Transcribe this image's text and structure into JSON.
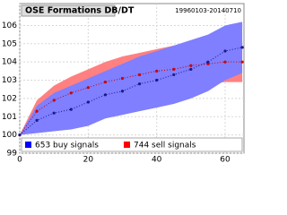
{
  "chart_data": {
    "type": "band-line",
    "title": "OSE Formations DB/DT",
    "subtitle": "19960103-20140710",
    "x": [
      0,
      5,
      10,
      15,
      20,
      25,
      30,
      35,
      40,
      45,
      50,
      55,
      60,
      65
    ],
    "series": [
      {
        "name": "744 sell signals",
        "color": "#cc0000",
        "band_color": "#ff8080",
        "values": [
          100,
          101.3,
          101.9,
          102.3,
          102.6,
          102.9,
          103.1,
          103.3,
          103.5,
          103.6,
          103.8,
          103.9,
          104.0,
          104.0
        ],
        "upper": [
          100,
          101.9,
          102.7,
          103.2,
          103.6,
          104.0,
          104.3,
          104.5,
          104.7,
          104.9,
          105.0,
          105.1,
          105.2,
          105.2
        ],
        "lower": [
          100,
          100.8,
          101.2,
          101.5,
          101.8,
          102.0,
          102.2,
          102.4,
          102.5,
          102.6,
          102.7,
          102.8,
          102.9,
          102.9
        ]
      },
      {
        "name": "653 buy signals",
        "color": "#1a1a8c",
        "band_color": "#7f7fff",
        "values": [
          100,
          100.8,
          101.2,
          101.4,
          101.8,
          102.2,
          102.4,
          102.8,
          103.0,
          103.3,
          103.6,
          104.0,
          104.6,
          104.8
        ],
        "upper": [
          100,
          101.6,
          102.3,
          102.7,
          103.1,
          103.5,
          103.9,
          104.3,
          104.6,
          104.9,
          105.2,
          105.5,
          106.0,
          106.2
        ],
        "lower": [
          100,
          100.1,
          100.2,
          100.3,
          100.5,
          100.9,
          101.1,
          101.3,
          101.5,
          101.7,
          102.0,
          102.4,
          103.0,
          103.4
        ]
      }
    ],
    "xlim": [
      0,
      65.5
    ],
    "xticks": [
      0,
      20,
      40,
      60
    ],
    "ylim": [
      99,
      107.2
    ],
    "yticks": [
      99,
      100,
      101,
      102,
      103,
      104,
      105,
      106
    ],
    "grid": true
  }
}
